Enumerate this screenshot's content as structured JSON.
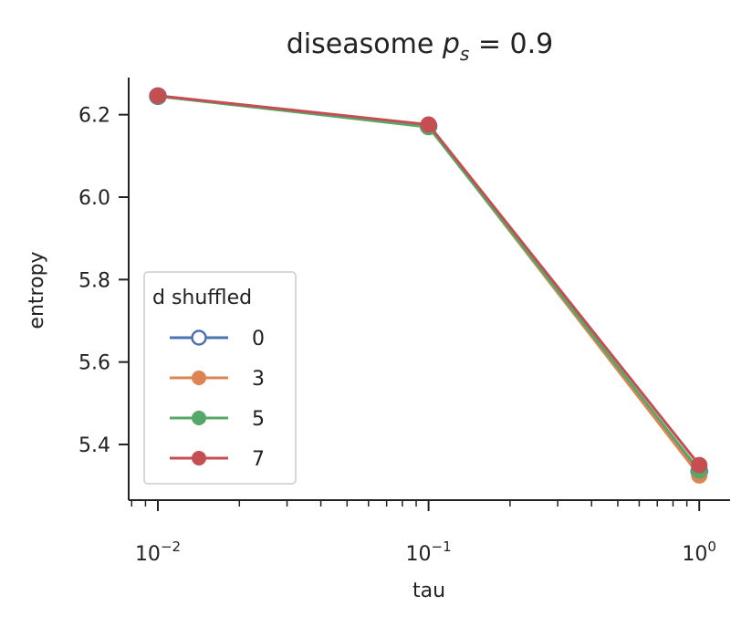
{
  "chart_data": {
    "type": "line",
    "title": "diseasome p_s = 0.9",
    "title_parts": {
      "prefix": "diseasome ",
      "p": "p",
      "sub": "s",
      "suffix": " = 0.9"
    },
    "xlabel": "tau",
    "ylabel": "entropy",
    "xscale": "log",
    "xlim": [
      0.0078,
      1.3
    ],
    "ylim": [
      5.265,
      6.29
    ],
    "x_ticks": [
      {
        "value": 0.01,
        "base": "10",
        "exp": "−2"
      },
      {
        "value": 0.1,
        "base": "10",
        "exp": "−1"
      },
      {
        "value": 1,
        "base": "10",
        "exp": "0"
      }
    ],
    "y_ticks": [
      {
        "value": 5.4,
        "label": "5.4"
      },
      {
        "value": 5.6,
        "label": "5.6"
      },
      {
        "value": 5.8,
        "label": "5.8"
      },
      {
        "value": 6.0,
        "label": "6.0"
      },
      {
        "value": 6.2,
        "label": "6.2"
      }
    ],
    "x": [
      0.01,
      0.1,
      1
    ],
    "series": [
      {
        "name": "0",
        "values": [
          6.245,
          6.172,
          5.335
        ],
        "color": "#4c72b0",
        "marker": "hollow"
      },
      {
        "name": "3",
        "values": [
          6.245,
          6.172,
          5.325
        ],
        "color": "#dd8452",
        "marker": "filled"
      },
      {
        "name": "5",
        "values": [
          6.245,
          6.17,
          5.337
        ],
        "color": "#55a868",
        "marker": "filled"
      },
      {
        "name": "7",
        "values": [
          6.246,
          6.176,
          5.35
        ],
        "color": "#c44e52",
        "marker": "filled"
      }
    ],
    "legend": {
      "title": "d shuffled",
      "position": "lower-left"
    },
    "grid": false
  }
}
